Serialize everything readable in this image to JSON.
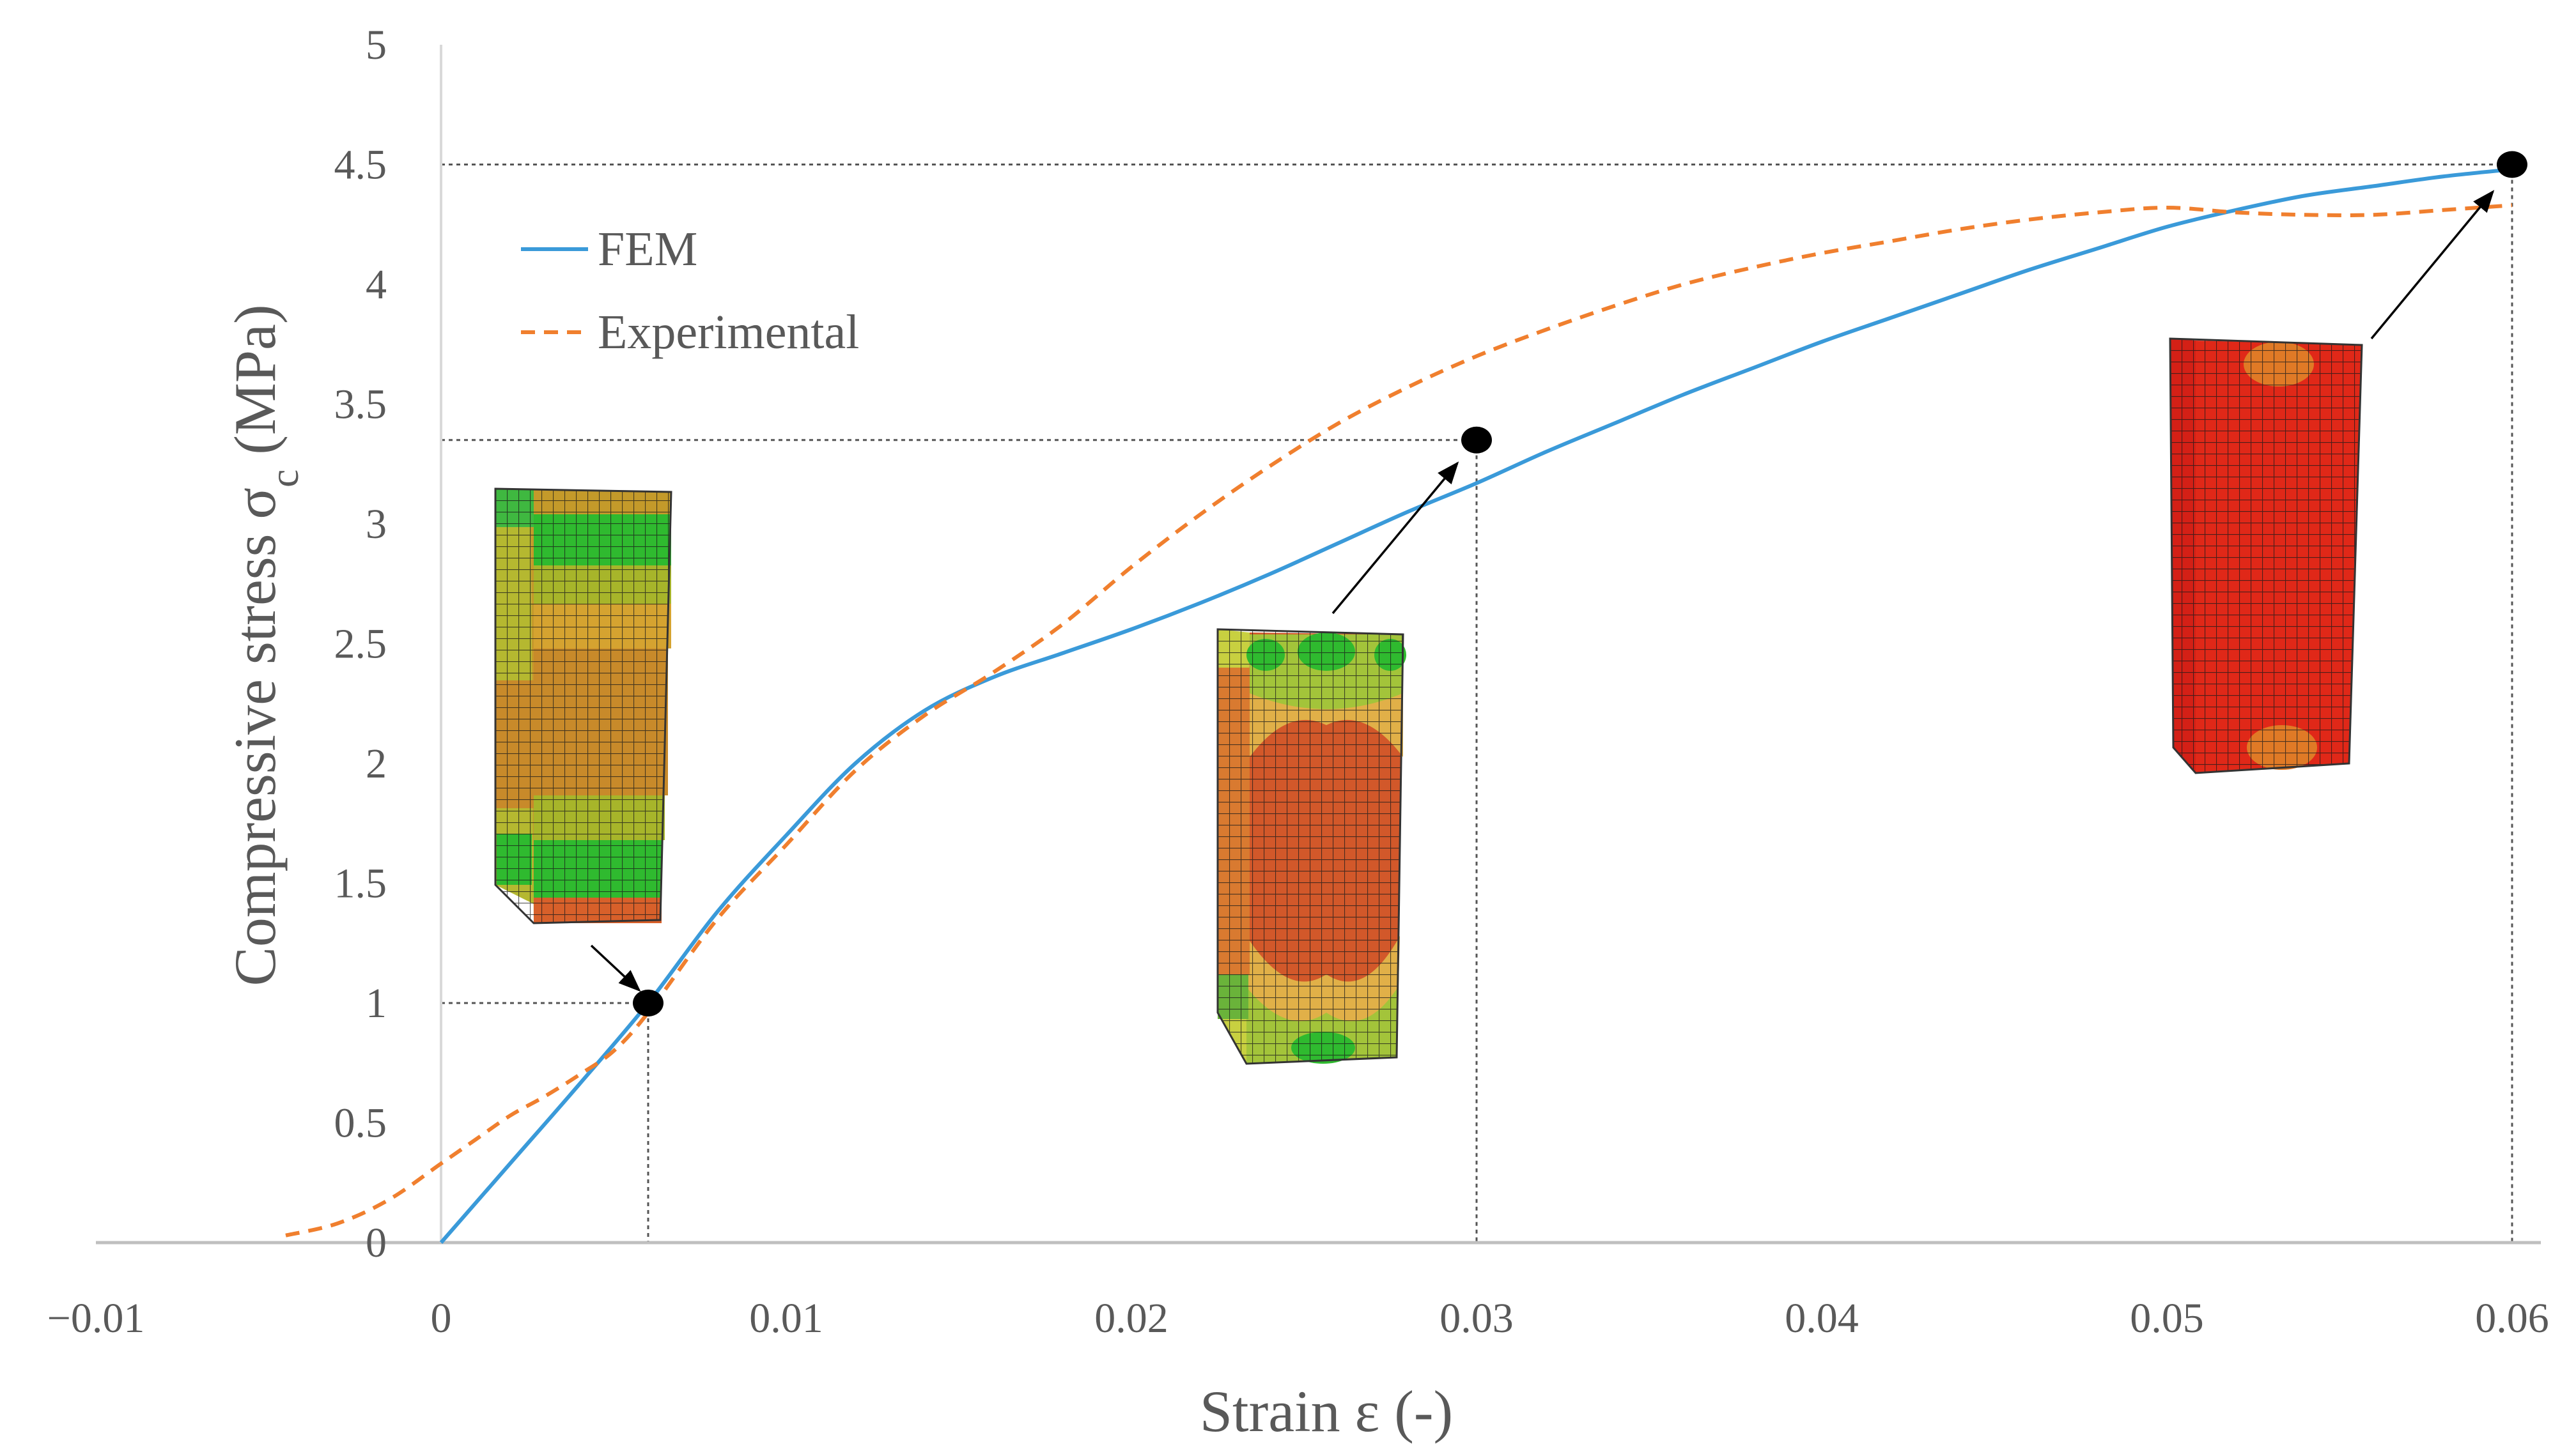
{
  "chart_data": {
    "type": "line",
    "title": "",
    "xlabel": "Strain ε (-)",
    "ylabel_main": "Compressive stress σ",
    "ylabel_sub": "c",
    "ylabel_unit": " (MPa)",
    "xlim": [
      -0.01,
      0.06
    ],
    "ylim": [
      0,
      5
    ],
    "x_ticks": [
      -0.01,
      0,
      0.01,
      0.02,
      0.03,
      0.04,
      0.05,
      0.06
    ],
    "x_tick_labels": [
      "−0.01",
      "0",
      "0.01",
      "0.02",
      "0.03",
      "0.04",
      "0.05",
      "0.06"
    ],
    "y_ticks": [
      0,
      0.5,
      1,
      1.5,
      2,
      2.5,
      3,
      3.5,
      4,
      4.5,
      5
    ],
    "y_tick_labels": [
      "0",
      "0.5",
      "1",
      "1.5",
      "2",
      "2.5",
      "3",
      "3.5",
      "4",
      "4.5",
      "5"
    ],
    "grid": false,
    "legend_position": "upper-left",
    "series": [
      {
        "name": "FEM",
        "color": "#3a9ad9",
        "style": "solid",
        "points": [
          [
            0,
            0
          ],
          [
            0.002,
            0.33
          ],
          [
            0.004,
            0.66
          ],
          [
            0.006,
            1.0
          ],
          [
            0.008,
            1.38
          ],
          [
            0.01,
            1.7
          ],
          [
            0.012,
            2.0
          ],
          [
            0.014,
            2.22
          ],
          [
            0.016,
            2.36
          ],
          [
            0.018,
            2.46
          ],
          [
            0.02,
            2.56
          ],
          [
            0.022,
            2.67
          ],
          [
            0.024,
            2.79
          ],
          [
            0.026,
            2.92
          ],
          [
            0.028,
            3.05
          ],
          [
            0.03,
            3.17
          ],
          [
            0.032,
            3.3
          ],
          [
            0.034,
            3.42
          ],
          [
            0.036,
            3.54
          ],
          [
            0.038,
            3.65
          ],
          [
            0.04,
            3.76
          ],
          [
            0.042,
            3.86
          ],
          [
            0.044,
            3.96
          ],
          [
            0.046,
            4.06
          ],
          [
            0.048,
            4.15
          ],
          [
            0.05,
            4.24
          ],
          [
            0.052,
            4.31
          ],
          [
            0.054,
            4.37
          ],
          [
            0.056,
            4.41
          ],
          [
            0.058,
            4.45
          ],
          [
            0.06,
            4.48
          ]
        ]
      },
      {
        "name": "Experimental",
        "color": "#f07f2e",
        "style": "dashed",
        "points": [
          [
            -0.0045,
            0.03
          ],
          [
            -0.003,
            0.08
          ],
          [
            -0.0015,
            0.18
          ],
          [
            0,
            0.33
          ],
          [
            0.001,
            0.43
          ],
          [
            0.002,
            0.53
          ],
          [
            0.003,
            0.61
          ],
          [
            0.004,
            0.7
          ],
          [
            0.005,
            0.8
          ],
          [
            0.006,
            0.96
          ],
          [
            0.008,
            1.35
          ],
          [
            0.01,
            1.66
          ],
          [
            0.012,
            1.97
          ],
          [
            0.014,
            2.2
          ],
          [
            0.016,
            2.38
          ],
          [
            0.018,
            2.58
          ],
          [
            0.02,
            2.82
          ],
          [
            0.022,
            3.04
          ],
          [
            0.024,
            3.24
          ],
          [
            0.026,
            3.42
          ],
          [
            0.028,
            3.57
          ],
          [
            0.03,
            3.7
          ],
          [
            0.032,
            3.81
          ],
          [
            0.034,
            3.91
          ],
          [
            0.036,
            4.0
          ],
          [
            0.038,
            4.07
          ],
          [
            0.04,
            4.13
          ],
          [
            0.042,
            4.18
          ],
          [
            0.044,
            4.23
          ],
          [
            0.046,
            4.27
          ],
          [
            0.048,
            4.3
          ],
          [
            0.05,
            4.32
          ],
          [
            0.052,
            4.3
          ],
          [
            0.054,
            4.29
          ],
          [
            0.056,
            4.29
          ],
          [
            0.058,
            4.31
          ],
          [
            0.06,
            4.33
          ]
        ]
      }
    ],
    "markers": [
      {
        "x": 0.006,
        "y": 1.0
      },
      {
        "x": 0.03,
        "y": 3.35
      },
      {
        "x": 0.06,
        "y": 4.5
      }
    ],
    "insets": [
      {
        "name": "fem-mesh-deformed-low-strain",
        "strain": 0.006
      },
      {
        "name": "fem-mesh-deformed-mid-strain",
        "strain": 0.03
      },
      {
        "name": "fem-mesh-deformed-high-strain",
        "strain": 0.06
      }
    ]
  }
}
